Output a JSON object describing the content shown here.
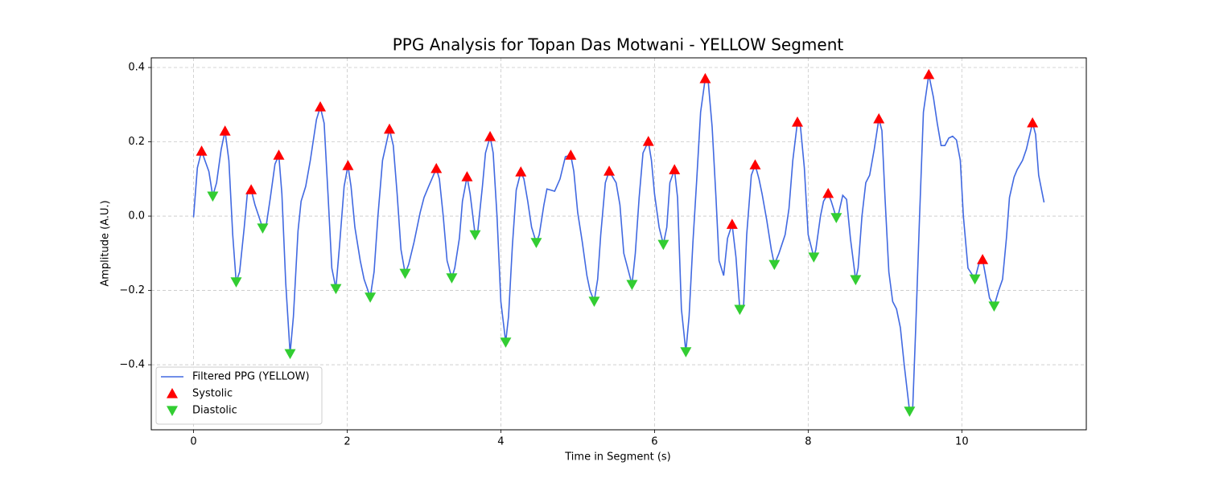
{
  "chart_data": {
    "type": "line",
    "title": "PPG Analysis for Topan Das Motwani - YELLOW Segment",
    "x_label": "Time in Segment (s)",
    "y_label": "Amplitude (A.U.)",
    "xlim": [
      -0.55,
      11.62
    ],
    "ylim": [
      -0.575,
      0.426
    ],
    "xticks": [
      0,
      2,
      4,
      6,
      8,
      10
    ],
    "yticks": [
      {
        "value": -0.4,
        "label": "−0.4"
      },
      {
        "value": -0.2,
        "label": "−0.2"
      },
      {
        "value": 0,
        "label": "0.0"
      },
      0.2,
      0.4
    ],
    "grid": true,
    "legend": "lower left",
    "series": [
      {
        "name": "Filtered PPG (YELLOW)",
        "type": "line",
        "color": "#4169e1",
        "x": [
          0,
          0.05,
          0.105,
          0.2,
          0.25,
          0.3,
          0.36,
          0.41,
          0.46,
          0.51,
          0.555,
          0.6,
          0.66,
          0.7,
          0.75,
          0.8,
          0.9,
          0.95,
          1.0,
          1.06,
          1.11,
          1.15,
          1.2,
          1.257,
          1.3,
          1.36,
          1.4,
          1.46,
          1.52,
          1.6,
          1.65,
          1.7,
          1.75,
          1.8,
          1.853,
          1.9,
          1.96,
          2.01,
          2.05,
          2.1,
          2.17,
          2.22,
          2.3,
          2.35,
          2.4,
          2.46,
          2.55,
          2.6,
          2.65,
          2.7,
          2.754,
          2.8,
          2.87,
          2.95,
          3.0,
          3.06,
          3.16,
          3.2,
          3.25,
          3.3,
          3.361,
          3.4,
          3.46,
          3.5,
          3.56,
          3.6,
          3.665,
          3.7,
          3.76,
          3.8,
          3.86,
          3.9,
          3.95,
          4.0,
          4.063,
          4.1,
          4.15,
          4.2,
          4.26,
          4.3,
          4.35,
          4.4,
          4.461,
          4.5,
          4.56,
          4.6,
          4.7,
          4.77,
          4.84,
          4.91,
          4.95,
          5.0,
          5.06,
          5.12,
          5.16,
          5.215,
          5.26,
          5.3,
          5.36,
          5.41,
          5.5,
          5.55,
          5.6,
          5.707,
          5.75,
          5.8,
          5.85,
          5.92,
          5.96,
          6.0,
          6.06,
          6.115,
          6.16,
          6.2,
          6.26,
          6.3,
          6.35,
          6.408,
          6.45,
          6.5,
          6.55,
          6.6,
          6.66,
          6.7,
          6.75,
          6.8,
          6.84,
          6.9,
          6.95,
          7.01,
          7.06,
          7.11,
          7.16,
          7.2,
          7.26,
          7.31,
          7.36,
          7.4,
          7.46,
          7.52,
          7.56,
          7.62,
          7.7,
          7.75,
          7.8,
          7.86,
          7.9,
          7.95,
          8.0,
          8.073,
          8.1,
          8.16,
          8.2,
          8.26,
          8.3,
          8.366,
          8.4,
          8.45,
          8.5,
          8.55,
          8.618,
          8.65,
          8.7,
          8.75,
          8.8,
          8.86,
          8.92,
          8.96,
          9.0,
          9.05,
          9.1,
          9.15,
          9.2,
          9.25,
          9.32,
          9.36,
          9.4,
          9.45,
          9.5,
          9.57,
          9.63,
          9.68,
          9.73,
          9.78,
          9.83,
          9.88,
          9.93,
          9.98,
          10.02,
          10.08,
          10.17,
          10.22,
          10.27,
          10.3,
          10.36,
          10.42,
          10.48,
          10.53,
          10.58,
          10.62,
          10.68,
          10.72,
          10.79,
          10.84,
          10.92,
          10.96,
          11.0,
          11.07
        ],
        "values": [
          -0.003,
          0.13,
          0.175,
          0.12,
          0.054,
          0.09,
          0.18,
          0.229,
          0.15,
          -0.05,
          -0.177,
          -0.15,
          -0.03,
          0.06,
          0.071,
          0.03,
          -0.032,
          -0.02,
          0.05,
          0.14,
          0.164,
          0.06,
          -0.18,
          -0.37,
          -0.27,
          -0.04,
          0.04,
          0.08,
          0.15,
          0.26,
          0.294,
          0.25,
          0.06,
          -0.14,
          -0.195,
          -0.08,
          0.08,
          0.136,
          0.08,
          -0.03,
          -0.12,
          -0.17,
          -0.218,
          -0.15,
          0.0,
          0.15,
          0.234,
          0.19,
          0.06,
          -0.09,
          -0.154,
          -0.13,
          -0.07,
          0.01,
          0.05,
          0.08,
          0.128,
          0.1,
          0.0,
          -0.12,
          -0.166,
          -0.14,
          -0.06,
          0.04,
          0.106,
          0.06,
          -0.05,
          -0.04,
          0.08,
          0.17,
          0.214,
          0.17,
          0.0,
          -0.23,
          -0.339,
          -0.27,
          -0.08,
          0.07,
          0.119,
          0.1,
          0.04,
          -0.03,
          -0.071,
          -0.05,
          0.03,
          0.073,
          0.067,
          0.1,
          0.16,
          0.164,
          0.12,
          0.01,
          -0.07,
          -0.16,
          -0.2,
          -0.229,
          -0.17,
          -0.05,
          0.09,
          0.121,
          0.09,
          0.03,
          -0.1,
          -0.184,
          -0.1,
          0.05,
          0.17,
          0.201,
          0.15,
          0.06,
          -0.03,
          -0.076,
          -0.03,
          0.09,
          0.125,
          0.05,
          -0.25,
          -0.365,
          -0.27,
          -0.07,
          0.1,
          0.28,
          0.37,
          0.36,
          0.24,
          0.05,
          -0.12,
          -0.16,
          -0.06,
          -0.022,
          -0.11,
          -0.251,
          -0.24,
          -0.05,
          0.11,
          0.138,
          0.1,
          0.06,
          -0.01,
          -0.09,
          -0.13,
          -0.1,
          -0.05,
          0.02,
          0.15,
          0.253,
          0.24,
          0.13,
          -0.05,
          -0.11,
          -0.09,
          0.0,
          0.04,
          0.061,
          0.04,
          -0.004,
          0.01,
          0.056,
          0.045,
          -0.06,
          -0.171,
          -0.14,
          0.0,
          0.09,
          0.11,
          0.18,
          0.262,
          0.23,
          0.05,
          -0.15,
          -0.23,
          -0.25,
          -0.3,
          -0.4,
          -0.525,
          -0.52,
          -0.3,
          0.0,
          0.28,
          0.381,
          0.32,
          0.25,
          0.19,
          0.19,
          0.21,
          0.215,
          0.205,
          0.15,
          0.0,
          -0.14,
          -0.169,
          -0.13,
          -0.117,
          -0.15,
          -0.22,
          -0.242,
          -0.2,
          -0.17,
          -0.06,
          0.05,
          0.105,
          0.125,
          0.15,
          0.18,
          0.251,
          0.22,
          0.11,
          0.037
        ]
      },
      {
        "name": "Systolic",
        "type": "scatter",
        "marker": "triangle-up",
        "color": "#ff0000",
        "x": [
          0.105,
          0.41,
          0.75,
          1.11,
          1.65,
          2.01,
          2.55,
          3.16,
          3.56,
          3.86,
          4.26,
          4.91,
          5.41,
          5.92,
          6.26,
          6.66,
          7.01,
          7.31,
          7.86,
          8.26,
          8.92,
          9.57,
          10.27,
          10.92
        ],
        "values": [
          0.175,
          0.229,
          0.071,
          0.164,
          0.294,
          0.136,
          0.234,
          0.128,
          0.106,
          0.214,
          0.119,
          0.164,
          0.121,
          0.201,
          0.125,
          0.37,
          -0.022,
          0.138,
          0.253,
          0.061,
          0.262,
          0.381,
          -0.117,
          0.251
        ]
      },
      {
        "name": "Diastolic",
        "type": "scatter",
        "marker": "triangle-down",
        "color": "#32cd32",
        "x": [
          0.25,
          0.555,
          0.9,
          1.257,
          1.853,
          2.3,
          2.754,
          3.361,
          3.665,
          4.063,
          4.461,
          5.215,
          5.707,
          6.115,
          6.408,
          7.11,
          7.56,
          8.073,
          8.366,
          8.618,
          9.32,
          10.17,
          10.42
        ],
        "values": [
          0.054,
          -0.177,
          -0.032,
          -0.37,
          -0.195,
          -0.218,
          -0.154,
          -0.166,
          -0.05,
          -0.339,
          -0.071,
          -0.229,
          -0.184,
          -0.076,
          -0.365,
          -0.251,
          -0.13,
          -0.11,
          -0.004,
          -0.171,
          -0.525,
          -0.169,
          -0.242
        ]
      }
    ]
  }
}
